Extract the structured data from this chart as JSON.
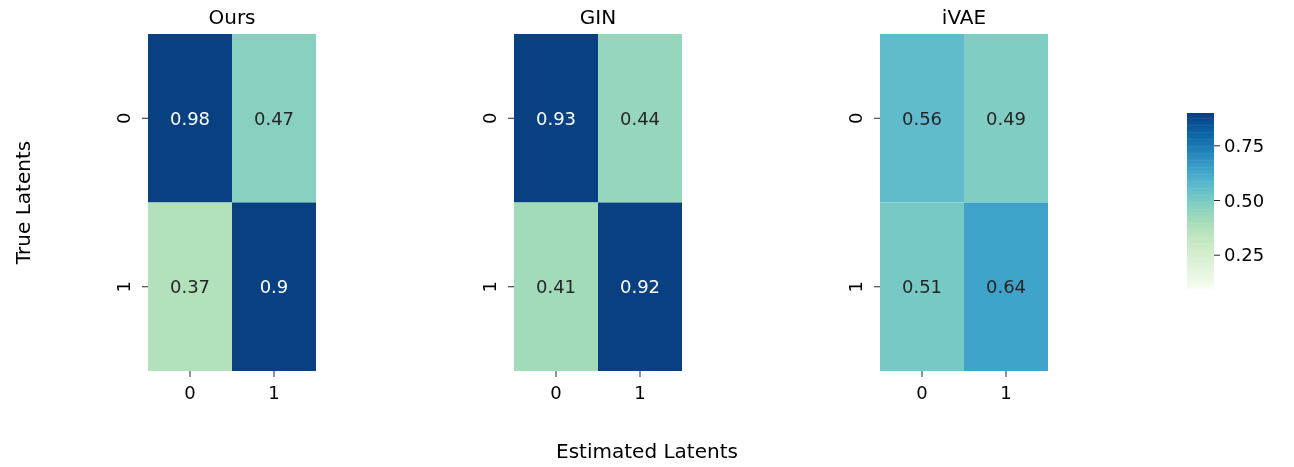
{
  "chart_data": [
    {
      "type": "heatmap",
      "title": "Ours",
      "ylabel": "True Latents",
      "categories": [
        "0",
        "1"
      ],
      "y_categories": [
        "0",
        "1"
      ],
      "cells": [
        [
          0.98,
          0.47
        ],
        [
          0.37,
          0.9
        ]
      ],
      "data_labels": true
    },
    {
      "type": "heatmap",
      "title": "GIN",
      "xlabel": "Estimated Latents",
      "categories": [
        "0",
        "1"
      ],
      "y_categories": [
        "0",
        "1"
      ],
      "cells": [
        [
          0.93,
          0.44
        ],
        [
          0.41,
          0.92
        ]
      ],
      "data_labels": true
    },
    {
      "type": "heatmap",
      "title": "iVAE",
      "categories": [
        "0",
        "1"
      ],
      "y_categories": [
        "0",
        "1"
      ],
      "cells": [
        [
          0.56,
          0.49
        ],
        [
          0.51,
          0.64
        ]
      ],
      "clim": [
        0.1,
        0.9
      ],
      "cticks": [
        0.25,
        {
          "value": 0.5,
          "label": "0.50"
        },
        0.75
      ],
      "data_labels": true
    }
  ]
}
